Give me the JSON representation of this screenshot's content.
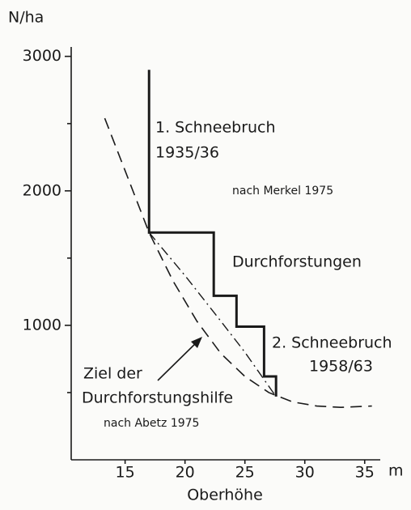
{
  "chart_data": {
    "type": "line",
    "ylabel": "N/ha",
    "xlabel": "Oberhöhe",
    "xunit": "m",
    "xlim": [
      10.5,
      36.3
    ],
    "xticks": [
      15,
      20,
      25,
      30,
      35
    ],
    "ylim": [
      0,
      3070
    ],
    "yticks": [
      1000,
      2000,
      3000
    ],
    "yminorticks": [
      500,
      1500,
      2500
    ],
    "series": [
      {
        "style": "solid",
        "color": "#1a1a1a",
        "x": [
          17,
          17,
          22.4,
          22.4,
          24.3,
          24.3,
          26.6,
          26.6,
          27.6,
          27.6
        ],
        "values": [
          2900,
          1690,
          1690,
          1220,
          1220,
          990,
          990,
          620,
          620,
          470
        ]
      },
      {
        "style": "dashed",
        "color": "#1a1a1a",
        "x": [
          13.3,
          15,
          17,
          19,
          21,
          23,
          25,
          27,
          29,
          31,
          33,
          35.6
        ],
        "values": [
          2540,
          2150,
          1690,
          1330,
          1030,
          790,
          620,
          500,
          430,
          400,
          390,
          400
        ]
      },
      {
        "style": "dashdot",
        "color": "#1a1a1a",
        "x": [
          17,
          20,
          23,
          25,
          27.6
        ],
        "values": [
          1690,
          1370,
          1030,
          800,
          470
        ]
      }
    ],
    "annotations": [
      "1. Schneebruch",
      "1935/36",
      "nach Merkel 1975",
      "Durchforstungen",
      "2. Schneebruch",
      "1958/63",
      "Ziel der",
      "Durchforstungshilfe",
      "nach Abetz 1975"
    ]
  }
}
